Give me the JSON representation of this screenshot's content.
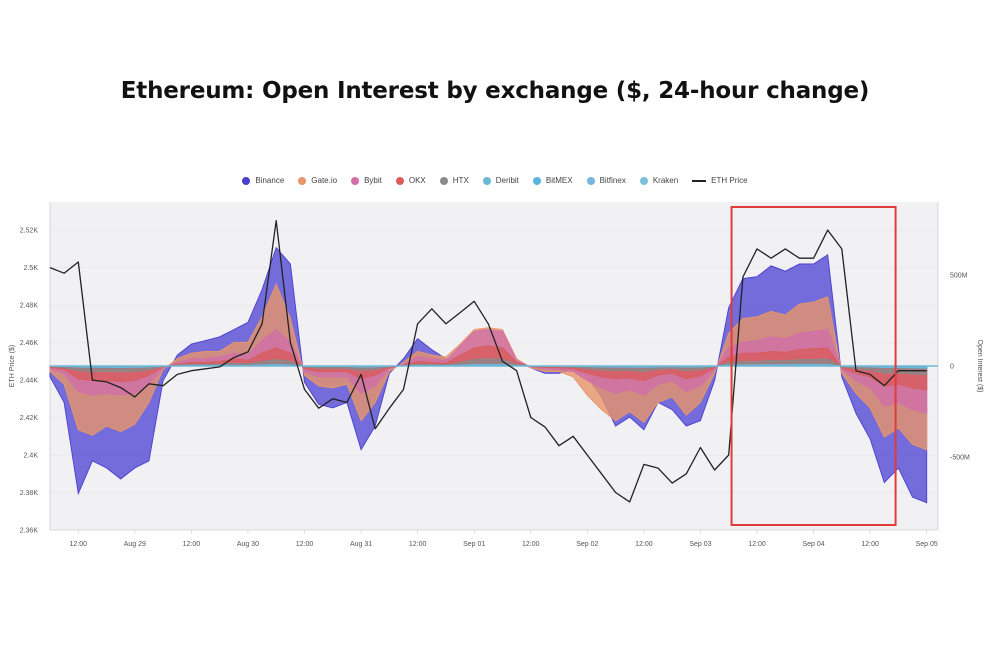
{
  "title": "Ethereum: Open Interest by exchange ($, 24-hour change)",
  "legend": [
    {
      "name": "Binance",
      "color": "#4a3fd1",
      "kind": "dot"
    },
    {
      "name": "Gate.io",
      "color": "#e8956a",
      "kind": "dot"
    },
    {
      "name": "Bybit",
      "color": "#d06fa8",
      "kind": "dot"
    },
    {
      "name": "OKX",
      "color": "#d85c5c",
      "kind": "dot"
    },
    {
      "name": "HTX",
      "color": "#8a8a8a",
      "kind": "dot"
    },
    {
      "name": "Deribit",
      "color": "#6cb8d8",
      "kind": "dot"
    },
    {
      "name": "BitMEX",
      "color": "#5ab4e0",
      "kind": "dot"
    },
    {
      "name": "Bitfinex",
      "color": "#76b6de",
      "kind": "dot"
    },
    {
      "name": "Kraken",
      "color": "#7cc0dc",
      "kind": "dot"
    },
    {
      "name": "ETH Price",
      "color": "#222222",
      "kind": "line"
    }
  ],
  "chart_data": {
    "type": "area",
    "title": "Ethereum: Open Interest by exchange ($, 24-hour change)",
    "ylabel_left": "ETH Price ($)",
    "ylabel_right": "Open Interest ($)",
    "y_left_ticks": [
      "2.36K",
      "2.38K",
      "2.4K",
      "2.42K",
      "2.44K",
      "2.46K",
      "2.48K",
      "2.5K",
      "2.52K"
    ],
    "y_left_range": [
      2360,
      2535
    ],
    "y_right_ticks": [
      "500M",
      "0",
      "-500M"
    ],
    "y_right_range": [
      -900,
      900
    ],
    "x_ticks": [
      "12:00",
      "Aug 29",
      "12:00",
      "Aug 30",
      "12:00",
      "Aug 31",
      "12:00",
      "Sep 01",
      "12:00",
      "Sep 02",
      "12:00",
      "Sep 03",
      "12:00",
      "Sep 04",
      "12:00",
      "Sep 05"
    ],
    "x_range": [
      0,
      15.7
    ],
    "highlight_box": {
      "x_start": 12.05,
      "x_end": 14.95,
      "color": "#e23b3b"
    },
    "x": [
      0,
      0.25,
      0.5,
      0.75,
      1,
      1.25,
      1.5,
      1.75,
      2,
      2.25,
      2.5,
      2.75,
      3,
      3.25,
      3.5,
      3.75,
      4,
      4.25,
      4.5,
      4.75,
      5,
      5.25,
      5.5,
      5.75,
      6,
      6.25,
      6.5,
      6.75,
      7,
      7.25,
      7.5,
      7.75,
      8,
      8.25,
      8.5,
      8.75,
      9,
      9.25,
      9.5,
      9.75,
      10,
      10.25,
      10.5,
      10.75,
      11,
      11.25,
      11.5,
      11.75,
      12,
      12.25,
      12.5,
      12.75,
      13,
      13.25,
      13.5,
      13.75,
      14,
      14.25,
      14.5,
      14.75,
      15,
      15.25,
      15.5
    ],
    "series": [
      {
        "name": "Binance",
        "color": "#4a3fd1",
        "values": [
          -60,
          -200,
          -700,
          -520,
          -560,
          -620,
          -560,
          -520,
          -80,
          60,
          120,
          140,
          160,
          200,
          240,
          420,
          650,
          560,
          -90,
          -210,
          -230,
          -200,
          -460,
          -330,
          -40,
          40,
          150,
          90,
          40,
          20,
          10,
          30,
          40,
          30,
          -10,
          -40,
          -40,
          -20,
          -60,
          -170,
          -330,
          -280,
          -350,
          -200,
          -240,
          -330,
          -300,
          -80,
          320,
          480,
          490,
          550,
          520,
          560,
          560,
          610,
          -60,
          -260,
          -400,
          -640,
          -560,
          -720,
          -750
        ]
      },
      {
        "name": "Gate.io",
        "color": "#e8956a",
        "values": [
          -30,
          -100,
          -350,
          -380,
          -330,
          -360,
          -320,
          -200,
          -20,
          40,
          70,
          80,
          80,
          130,
          130,
          270,
          450,
          260,
          -50,
          -110,
          -120,
          -100,
          -300,
          -200,
          -30,
          20,
          80,
          60,
          50,
          120,
          200,
          210,
          200,
          40,
          -10,
          -30,
          -30,
          -60,
          -160,
          -240,
          -300,
          -250,
          -310,
          -200,
          -170,
          -270,
          -200,
          -40,
          180,
          260,
          270,
          300,
          280,
          340,
          350,
          380,
          -40,
          -150,
          -230,
          -390,
          -340,
          -430,
          -460
        ]
      },
      {
        "name": "Bybit",
        "color": "#d06fa8",
        "values": [
          -15,
          -40,
          -140,
          -160,
          -150,
          -160,
          -150,
          -100,
          -10,
          20,
          40,
          40,
          50,
          70,
          60,
          140,
          200,
          130,
          -30,
          -60,
          -60,
          -60,
          -150,
          -110,
          -15,
          10,
          50,
          40,
          30,
          110,
          190,
          200,
          190,
          30,
          -5,
          -15,
          -20,
          -30,
          -80,
          -120,
          -150,
          -130,
          -160,
          -100,
          -80,
          -140,
          -110,
          -20,
          100,
          130,
          140,
          160,
          150,
          180,
          190,
          200,
          -20,
          -80,
          -120,
          -220,
          -200,
          -240,
          -260
        ]
      },
      {
        "name": "OKX",
        "color": "#d85c5c",
        "values": [
          -8,
          -20,
          -70,
          -80,
          -80,
          -85,
          -80,
          -50,
          -5,
          10,
          20,
          20,
          25,
          40,
          30,
          70,
          100,
          70,
          -15,
          -30,
          -30,
          -30,
          -70,
          -50,
          -8,
          5,
          25,
          20,
          15,
          60,
          100,
          110,
          100,
          20,
          -3,
          -8,
          -10,
          -15,
          -40,
          -60,
          -70,
          -65,
          -80,
          -50,
          -40,
          -70,
          -55,
          -10,
          50,
          70,
          70,
          80,
          75,
          90,
          95,
          100,
          -10,
          -40,
          -60,
          -110,
          -100,
          -120,
          -130
        ]
      },
      {
        "name": "HTX",
        "color": "#8a8a8a",
        "values": [
          -3,
          -8,
          -25,
          -30,
          -30,
          -32,
          -30,
          -20,
          -2,
          4,
          8,
          8,
          10,
          15,
          12,
          25,
          35,
          25,
          -6,
          -12,
          -12,
          -12,
          -25,
          -20,
          -3,
          2,
          10,
          8,
          6,
          20,
          35,
          40,
          35,
          8,
          -1,
          -3,
          -4,
          -6,
          -15,
          -22,
          -25,
          -24,
          -30,
          -20,
          -15,
          -25,
          -20,
          -4,
          20,
          25,
          25,
          30,
          28,
          35,
          36,
          38,
          -4,
          -15,
          -22,
          -40,
          -38,
          -44,
          -48
        ]
      },
      {
        "name": "Deribit",
        "color": "#6cb8d8",
        "values": [
          -1,
          -2,
          -6,
          -7,
          -7,
          -8,
          -7,
          -5,
          -1,
          1,
          2,
          2,
          2,
          4,
          3,
          6,
          8,
          6,
          -2,
          -3,
          -3,
          -3,
          -6,
          -5,
          -1,
          1,
          2,
          2,
          2,
          5,
          8,
          9,
          8,
          2,
          0,
          -1,
          -1,
          -2,
          -4,
          -5,
          -6,
          -6,
          -7,
          -5,
          -4,
          -6,
          -5,
          -1,
          5,
          6,
          6,
          7,
          7,
          8,
          9,
          9,
          -1,
          -4,
          -5,
          -9,
          -9,
          -10,
          -11
        ]
      },
      {
        "name": "BitMEX",
        "color": "#5ab4e0",
        "values": [
          0,
          -1,
          -2,
          -2,
          -2,
          -2,
          -2,
          -1,
          0,
          0,
          1,
          1,
          1,
          1,
          1,
          2,
          2,
          2,
          -1,
          -1,
          -1,
          -1,
          -2,
          -1,
          0,
          0,
          1,
          1,
          1,
          1,
          2,
          2,
          2,
          1,
          0,
          0,
          0,
          -1,
          -1,
          -1,
          -2,
          -2,
          -2,
          -1,
          -1,
          -2,
          -1,
          0,
          1,
          2,
          2,
          2,
          2,
          2,
          2,
          2,
          0,
          -1,
          -1,
          -2,
          -2,
          -3,
          -3
        ]
      },
      {
        "name": "Bitfinex",
        "color": "#76b6de",
        "values": [
          0,
          0,
          -1,
          -1,
          -1,
          -1,
          -1,
          -1,
          0,
          0,
          0,
          0,
          0,
          1,
          0,
          1,
          1,
          1,
          0,
          0,
          0,
          0,
          -1,
          -1,
          0,
          0,
          0,
          0,
          0,
          1,
          1,
          1,
          1,
          0,
          0,
          0,
          0,
          0,
          -1,
          -1,
          -1,
          -1,
          -1,
          -1,
          -1,
          -1,
          -1,
          0,
          1,
          1,
          1,
          1,
          1,
          1,
          1,
          1,
          0,
          -1,
          -1,
          -1,
          -1,
          -1,
          -1
        ]
      },
      {
        "name": "Kraken",
        "color": "#7cc0dc",
        "values": [
          0,
          0,
          0,
          0,
          0,
          0,
          0,
          0,
          0,
          0,
          0,
          0,
          0,
          0,
          0,
          0,
          0,
          0,
          0,
          0,
          0,
          0,
          0,
          0,
          0,
          0,
          0,
          0,
          0,
          0,
          0,
          0,
          0,
          0,
          0,
          0,
          0,
          0,
          0,
          0,
          0,
          0,
          0,
          0,
          0,
          0,
          0,
          0,
          0,
          0,
          0,
          0,
          0,
          0,
          0,
          0,
          0,
          0,
          0,
          0,
          0,
          0,
          0
        ]
      },
      {
        "name": "ETH Price",
        "color": "#222222",
        "axis": "left",
        "values": [
          2500,
          2497,
          2503,
          2440,
          2439,
          2436,
          2431,
          2438,
          2437,
          2443,
          2445,
          2446,
          2447,
          2452,
          2455,
          2470,
          2525,
          2460,
          2435,
          2425,
          2430,
          2428,
          2443,
          2414,
          2425,
          2435,
          2470,
          2478,
          2470,
          2476,
          2482,
          2470,
          2450,
          2445,
          2420,
          2415,
          2405,
          2410,
          2400,
          2390,
          2380,
          2375,
          2395,
          2393,
          2385,
          2390,
          2404,
          2392,
          2400,
          2495,
          2510,
          2505,
          2510,
          2505,
          2505,
          2520,
          2510,
          2445,
          2443,
          2437,
          2445,
          2445,
          2445
        ]
      }
    ]
  }
}
